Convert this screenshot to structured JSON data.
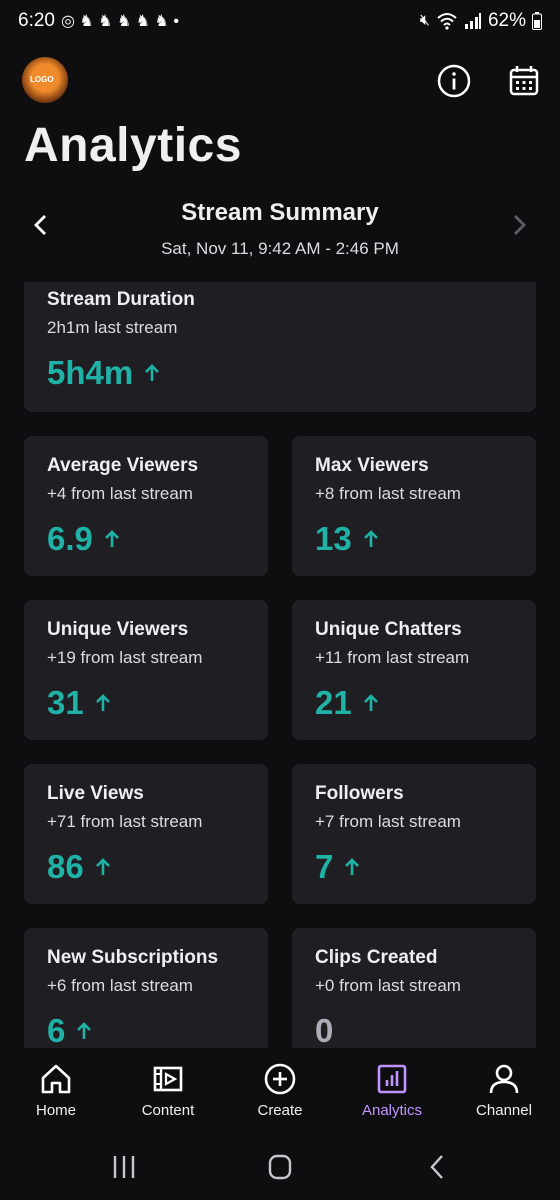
{
  "status": {
    "time": "6:20",
    "battery": "62%"
  },
  "header": {
    "title": "Analytics"
  },
  "summary": {
    "title": "Stream Summary",
    "date_range": "Sat, Nov 11, 9:42 AM - 2:46 PM"
  },
  "cards": {
    "duration": {
      "label": "Stream Duration",
      "delta": "2h1m last stream",
      "value": "5h4m",
      "trend": "up"
    },
    "avg_viewers": {
      "label": "Average Viewers",
      "delta": "+4 from last stream",
      "value": "6.9",
      "trend": "up"
    },
    "max_viewers": {
      "label": "Max Viewers",
      "delta": "+8 from last stream",
      "value": "13",
      "trend": "up"
    },
    "unique_viewers": {
      "label": "Unique Viewers",
      "delta": "+19 from last stream",
      "value": "31",
      "trend": "up"
    },
    "unique_chatters": {
      "label": "Unique Chatters",
      "delta": "+11 from last stream",
      "value": "21",
      "trend": "up"
    },
    "live_views": {
      "label": "Live Views",
      "delta": "+71 from last stream",
      "value": "86",
      "trend": "up"
    },
    "followers": {
      "label": "Followers",
      "delta": "+7 from last stream",
      "value": "7",
      "trend": "up"
    },
    "new_subs": {
      "label": "New Subscriptions",
      "delta": "+6 from last stream",
      "value": "6",
      "trend": "up"
    },
    "clips": {
      "label": "Clips Created",
      "delta": "+0 from last stream",
      "value": "0",
      "trend": "none"
    }
  },
  "tabs": [
    {
      "label": "Home",
      "icon": "home-icon"
    },
    {
      "label": "Content",
      "icon": "film-icon"
    },
    {
      "label": "Create",
      "icon": "plus-circle-icon"
    },
    {
      "label": "Analytics",
      "icon": "chart-icon",
      "active": true
    },
    {
      "label": "Channel",
      "icon": "person-icon"
    }
  ],
  "colors": {
    "background": "#0e0e10",
    "card": "#1f1f23",
    "accent_teal": "#1fb2a6",
    "active_purple": "#bf94ff"
  }
}
